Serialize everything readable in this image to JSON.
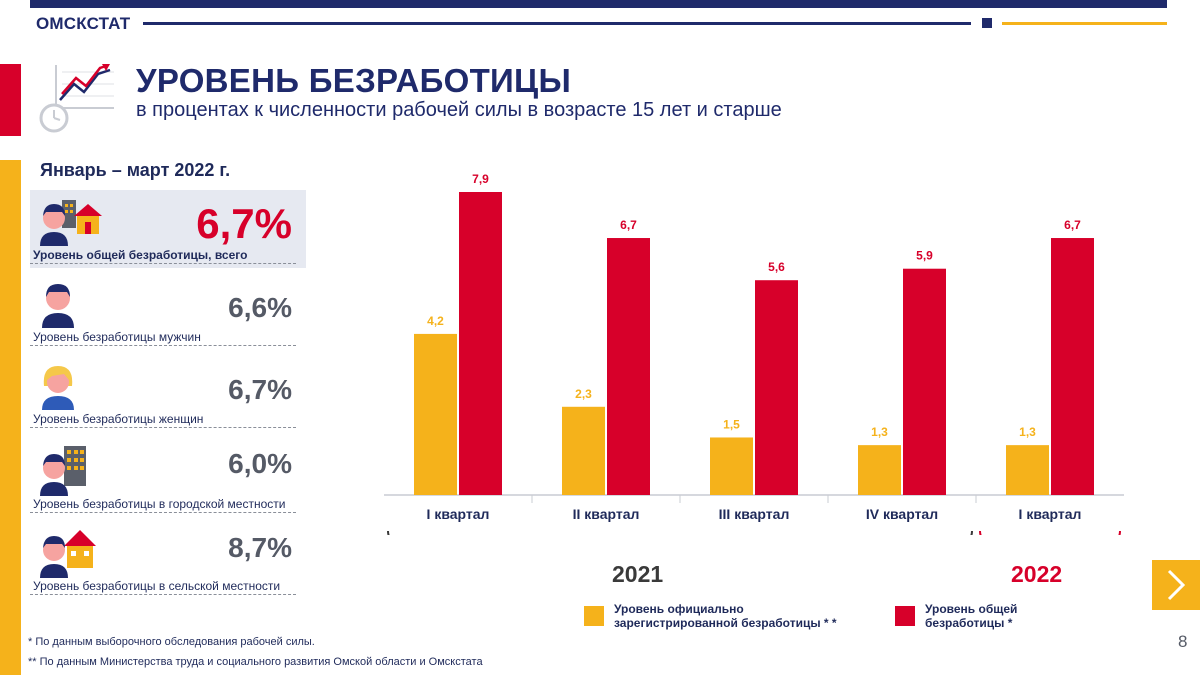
{
  "header": {
    "org": "ОМСКСТАТ"
  },
  "title": "УРОВЕНЬ БЕЗРАБОТИЦЫ",
  "subtitle": "в процентах к численности рабочей силы в возрасте 15 лет и старше",
  "period": "Январь – март 2022 г.",
  "stats": [
    {
      "value": "6,7%",
      "label": "Уровень общей безработицы, всего",
      "icon": "person-house-icon"
    },
    {
      "value": "6,6%",
      "label": "Уровень безработицы мужчин",
      "icon": "man-icon"
    },
    {
      "value": "6,7%",
      "label": "Уровень безработицы женщин",
      "icon": "woman-icon"
    },
    {
      "value": "6,0%",
      "label": "Уровень безработицы в городской местности",
      "icon": "person-building-icon"
    },
    {
      "value": "8,7%",
      "label": "Уровень безработицы в сельской местности",
      "icon": "person-house-icon"
    }
  ],
  "chart_data": {
    "type": "bar",
    "categories": [
      "I квартал",
      "II квартал",
      "III квартал",
      "IV квартал",
      "I квартал"
    ],
    "groups": [
      {
        "label": "2021",
        "color": "#3a3a3a",
        "span": [
          0,
          3
        ]
      },
      {
        "label": "2022",
        "color": "#d7002a",
        "span": [
          4,
          4
        ]
      }
    ],
    "series": [
      {
        "name": "Уровень официально\nзарегистрированной безработицы * *",
        "color": "#f5b21b",
        "values": [
          4.2,
          2.3,
          1.5,
          1.3,
          1.3
        ],
        "labels": [
          "4,2",
          "2,3",
          "1,5",
          "1,3",
          "1,3"
        ]
      },
      {
        "name": "Уровень общей\nбезработицы *",
        "color": "#d7002a",
        "values": [
          7.9,
          6.7,
          5.6,
          5.9,
          6.7
        ],
        "labels": [
          "7,9",
          "6,7",
          "5,6",
          "5,9",
          "6,7"
        ]
      }
    ],
    "ylim": [
      0,
      7.9
    ],
    "legend": "bottom"
  },
  "footnotes": [
    "* По данным выборочного обследования рабочей силы.",
    "** По данным Министерства труда  и социального развития Омской области и Омскстата"
  ],
  "page_number": "8",
  "colors": {
    "navy": "#1f2a6b",
    "yellow": "#f5b21b",
    "red": "#d7002a"
  }
}
